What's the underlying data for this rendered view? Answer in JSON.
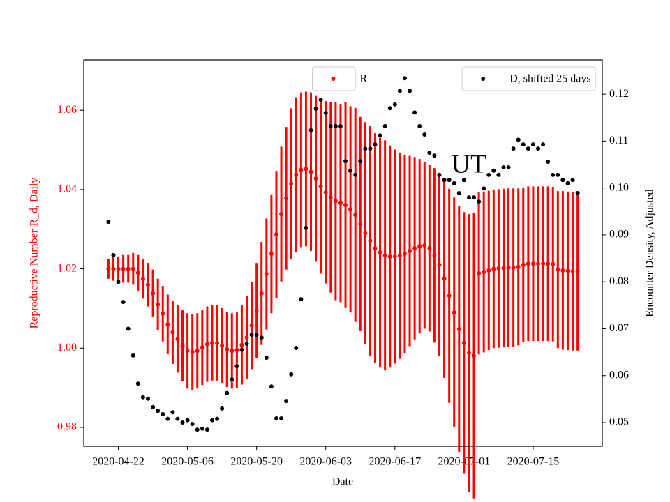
{
  "chart_data": {
    "type": "scatter",
    "x_label": "Date",
    "y_label": "Reproductive Number R_d, Daily",
    "y2_label": "Encounter Density, Adjusted",
    "annotations": [
      "UT"
    ],
    "x": [
      "2020-04-20",
      "2020-04-21",
      "2020-04-22",
      "2020-04-23",
      "2020-04-24",
      "2020-04-25",
      "2020-04-26",
      "2020-04-27",
      "2020-04-28",
      "2020-04-29",
      "2020-04-30",
      "2020-05-01",
      "2020-05-02",
      "2020-05-03",
      "2020-05-04",
      "2020-05-05",
      "2020-05-06",
      "2020-05-07",
      "2020-05-08",
      "2020-05-09",
      "2020-05-10",
      "2020-05-11",
      "2020-05-12",
      "2020-05-13",
      "2020-05-14",
      "2020-05-15",
      "2020-05-16",
      "2020-05-17",
      "2020-05-18",
      "2020-05-19",
      "2020-05-20",
      "2020-05-21",
      "2020-05-22",
      "2020-05-23",
      "2020-05-24",
      "2020-05-25",
      "2020-05-26",
      "2020-05-27",
      "2020-05-28",
      "2020-05-29",
      "2020-05-30",
      "2020-05-31",
      "2020-06-01",
      "2020-06-02",
      "2020-06-03",
      "2020-06-04",
      "2020-06-05",
      "2020-06-06",
      "2020-06-07",
      "2020-06-08",
      "2020-06-09",
      "2020-06-10",
      "2020-06-11",
      "2020-06-12",
      "2020-06-13",
      "2020-06-14",
      "2020-06-15",
      "2020-06-16",
      "2020-06-17",
      "2020-06-18",
      "2020-06-19",
      "2020-06-20",
      "2020-06-21",
      "2020-06-22",
      "2020-06-23",
      "2020-06-24",
      "2020-06-25",
      "2020-06-26",
      "2020-06-27",
      "2020-06-28",
      "2020-06-29",
      "2020-06-30",
      "2020-07-01",
      "2020-07-02",
      "2020-07-03",
      "2020-07-04",
      "2020-07-05",
      "2020-07-06",
      "2020-07-07",
      "2020-07-08",
      "2020-07-09",
      "2020-07-10",
      "2020-07-11",
      "2020-07-12",
      "2020-07-13",
      "2020-07-14",
      "2020-07-15",
      "2020-07-16",
      "2020-07-17",
      "2020-07-18",
      "2020-07-19",
      "2020-07-20",
      "2020-07-21",
      "2020-07-22",
      "2020-07-23",
      "2020-07-24"
    ],
    "xlim": [
      "2020-04-15",
      "2020-07-29"
    ],
    "xticks": [
      "2020-04-22",
      "2020-05-06",
      "2020-05-20",
      "2020-06-03",
      "2020-06-17",
      "2020-07-01",
      "2020-07-15"
    ],
    "ylim": [
      0.97525,
      1.0727
    ],
    "yticks": [
      0.98,
      {
        "value": 1,
        "label": "1.00"
      },
      1.02,
      1.04,
      1.06
    ],
    "y2lim": [
      0.04495,
      0.1273
    ],
    "y2ticks": [
      0.05,
      0.06,
      0.07,
      0.08,
      0.09,
      {
        "value": 0.1,
        "label": "0.10"
      },
      0.11,
      0.12
    ],
    "y_label_color": "#ff0000",
    "series": [
      {
        "name": "R",
        "color": "#ff0000",
        "axis": "y",
        "legend": "upper center",
        "values": [
          1.02,
          1.02,
          1.02,
          1.02,
          1.02,
          1.02,
          1.019,
          1.0175,
          1.016,
          1.0138,
          1.011,
          1.0087,
          1.006,
          1.004,
          1.0023,
          1.0006,
          0.9993,
          0.999,
          0.9993,
          1.0002,
          1.001,
          1.0013,
          1.0013,
          1.0006,
          0.9997,
          0.9993,
          0.9995,
          1.0008,
          1.0027,
          1.0057,
          1.0095,
          1.0138,
          1.0187,
          1.0238,
          1.0287,
          1.0338,
          1.0378,
          1.0415,
          1.0438,
          1.045,
          1.0452,
          1.0445,
          1.0428,
          1.0408,
          1.0393,
          1.038,
          1.0371,
          1.0366,
          1.0361,
          1.035,
          1.0336,
          1.0313,
          1.029,
          1.0271,
          1.0252,
          1.0241,
          1.0234,
          1.0231,
          1.0231,
          1.0233,
          1.0238,
          1.0245,
          1.0252,
          1.0257,
          1.0259,
          1.0252,
          1.0234,
          1.021,
          1.0175,
          1.0132,
          1.009,
          1.0048,
          1.0013,
          0.9988,
          0.9981,
          1.0189,
          1.0192,
          1.0196,
          1.02,
          1.0201,
          1.0202,
          1.0203,
          1.0203,
          1.0205,
          1.021,
          1.0213,
          1.0213,
          1.0213,
          1.0213,
          1.0213,
          1.0212,
          1.0198,
          1.0196,
          1.0195,
          1.0194,
          1.0194
        ],
        "errors": [
          0.0025,
          0.003,
          0.003,
          0.0035,
          0.0035,
          0.004,
          0.0045,
          0.005,
          0.0055,
          0.006,
          0.0065,
          0.007,
          0.0075,
          0.008,
          0.0085,
          0.009,
          0.0095,
          0.0095,
          0.0095,
          0.0095,
          0.0095,
          0.0095,
          0.0095,
          0.0095,
          0.0095,
          0.0095,
          0.0095,
          0.01,
          0.0105,
          0.011,
          0.012,
          0.013,
          0.014,
          0.015,
          0.016,
          0.017,
          0.018,
          0.019,
          0.0195,
          0.0195,
          0.0195,
          0.02,
          0.021,
          0.022,
          0.023,
          0.024,
          0.025,
          0.025,
          0.026,
          0.026,
          0.027,
          0.027,
          0.028,
          0.029,
          0.029,
          0.029,
          0.029,
          0.028,
          0.027,
          0.026,
          0.025,
          0.024,
          0.023,
          0.022,
          0.021,
          0.021,
          0.022,
          0.023,
          0.025,
          0.027,
          0.029,
          0.031,
          0.033,
          0.035,
          0.036,
          0.0205,
          0.0203,
          0.0201,
          0.02,
          0.02,
          0.02,
          0.02,
          0.02,
          0.0198,
          0.0195,
          0.0195,
          0.0195,
          0.0195,
          0.0195,
          0.0195,
          0.0195,
          0.0198,
          0.02,
          0.02,
          0.02,
          0.02
        ]
      },
      {
        "name": "D, shifted 25 days",
        "color": "#000000",
        "axis": "y2",
        "legend": "upper right",
        "values": [
          0.0928,
          0.0857,
          0.08,
          0.0757,
          0.07,
          0.0643,
          0.0583,
          0.0554,
          0.0551,
          0.0533,
          0.0525,
          0.0518,
          0.0508,
          0.0522,
          0.0508,
          0.05,
          0.0505,
          0.0497,
          0.0485,
          0.0487,
          0.0485,
          0.0505,
          0.0508,
          0.053,
          0.0563,
          0.0592,
          0.062,
          0.0655,
          0.0668,
          0.0687,
          0.0687,
          0.0681,
          0.0638,
          0.0577,
          0.0509,
          0.0509,
          0.0546,
          0.0603,
          0.0659,
          0.0763,
          0.0915,
          0.1123,
          0.1169,
          0.1188,
          0.116,
          0.1132,
          0.1132,
          0.1132,
          0.1057,
          0.1037,
          0.1028,
          0.1057,
          0.1084,
          0.1084,
          0.1093,
          0.1112,
          0.1132,
          0.117,
          0.1178,
          0.1207,
          0.1234,
          0.1207,
          0.1161,
          0.1132,
          0.1114,
          0.1075,
          0.1069,
          0.1028,
          0.1017,
          0.1017,
          0.101,
          0.0989,
          0.1017,
          0.098,
          0.098,
          0.0971,
          0.0999,
          0.1028,
          0.1037,
          0.1028,
          0.1044,
          0.1044,
          0.1084,
          0.1103,
          0.1093,
          0.1084,
          0.1093,
          0.1084,
          0.1093,
          0.1056,
          0.1028,
          0.1028,
          0.1017,
          0.101,
          0.1017,
          0.0989
        ]
      }
    ]
  }
}
